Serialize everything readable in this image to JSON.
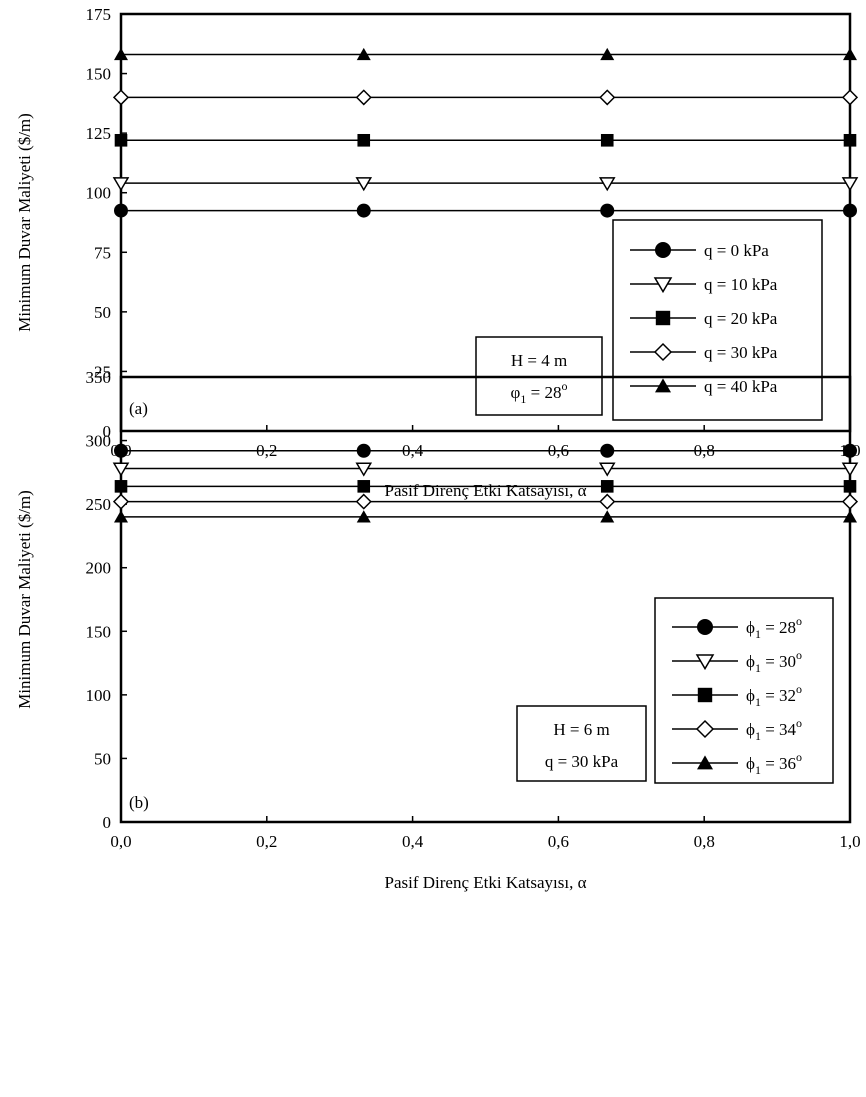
{
  "chart_data": [
    {
      "type": "line",
      "panel_label": "(a)",
      "xlabel": "Pasif Direnç Etki Katsayısı, α",
      "ylabel": "Minimum Duvar Maliyeti ($/m)",
      "xlim": [
        0,
        1
      ],
      "ylim": [
        0,
        175
      ],
      "x_ticks": [
        "0,0",
        "0,2",
        "0,4",
        "0,6",
        "0,8",
        "1,0"
      ],
      "y_ticks": [
        "0",
        "25",
        "50",
        "75",
        "100",
        "125",
        "150",
        "175"
      ],
      "x": [
        0,
        0.333,
        0.667,
        1.0
      ],
      "series": [
        {
          "name": "q = 0 kPa",
          "marker": "circle-filled",
          "values": [
            92.5,
            92.5,
            92.5,
            92.5
          ]
        },
        {
          "name": "q = 10 kPa",
          "marker": "triangle-down-open",
          "values": [
            104,
            104,
            104,
            104
          ]
        },
        {
          "name": "q = 20 kPa",
          "marker": "square-filled",
          "values": [
            122,
            122,
            122,
            122
          ]
        },
        {
          "name": "q = 30 kPa",
          "marker": "diamond-open",
          "values": [
            140,
            140,
            140,
            140
          ]
        },
        {
          "name": "q = 40 kPa",
          "marker": "triangle-up-filled",
          "values": [
            158,
            158,
            158,
            158
          ]
        }
      ],
      "legend_position": "lower-right",
      "annotation": {
        "line1": "H = 4 m",
        "line2_sym": "φ",
        "line2_sub": "1",
        "line2_rest": " = 28",
        "line2_sup": "o"
      }
    },
    {
      "type": "line",
      "panel_label": "(b)",
      "xlabel": "Pasif Direnç Etki Katsayısı, α",
      "ylabel": "Minimum Duvar Maliyeti ($/m)",
      "xlim": [
        0,
        1
      ],
      "ylim": [
        0,
        350
      ],
      "x_ticks": [
        "0,0",
        "0,2",
        "0,4",
        "0,6",
        "0,8",
        "1,0"
      ],
      "y_ticks": [
        "0",
        "50",
        "100",
        "150",
        "200",
        "250",
        "300",
        "350"
      ],
      "x": [
        0,
        0.333,
        0.667,
        1.0
      ],
      "series": [
        {
          "name": "ϕ1 = 28o",
          "label_sym": "ϕ",
          "label_sub": "1",
          "label_rest": " = 28",
          "label_sup": "o",
          "marker": "circle-filled",
          "values": [
            292,
            292,
            292,
            292
          ]
        },
        {
          "name": "ϕ1 = 30o",
          "label_sym": "ϕ",
          "label_sub": "1",
          "label_rest": " = 30",
          "label_sup": "o",
          "marker": "triangle-down-open",
          "values": [
            278,
            278,
            278,
            278
          ]
        },
        {
          "name": "ϕ1 = 32o",
          "label_sym": "ϕ",
          "label_sub": "1",
          "label_rest": " = 32",
          "label_sup": "o",
          "marker": "square-filled",
          "values": [
            264,
            264,
            264,
            264
          ]
        },
        {
          "name": "ϕ1 = 34o",
          "label_sym": "ϕ",
          "label_sub": "1",
          "label_rest": " = 34",
          "label_sup": "o",
          "marker": "diamond-open",
          "values": [
            252,
            252,
            252,
            252
          ]
        },
        {
          "name": "ϕ1 = 36o",
          "label_sym": "ϕ",
          "label_sub": "1",
          "label_rest": " = 36",
          "label_sup": "o",
          "marker": "triangle-up-filled",
          "values": [
            240,
            240,
            240,
            240
          ]
        }
      ],
      "legend_position": "lower-right",
      "annotation": {
        "line1": "H = 6 m",
        "line2": "q = 30 kPa"
      }
    }
  ]
}
